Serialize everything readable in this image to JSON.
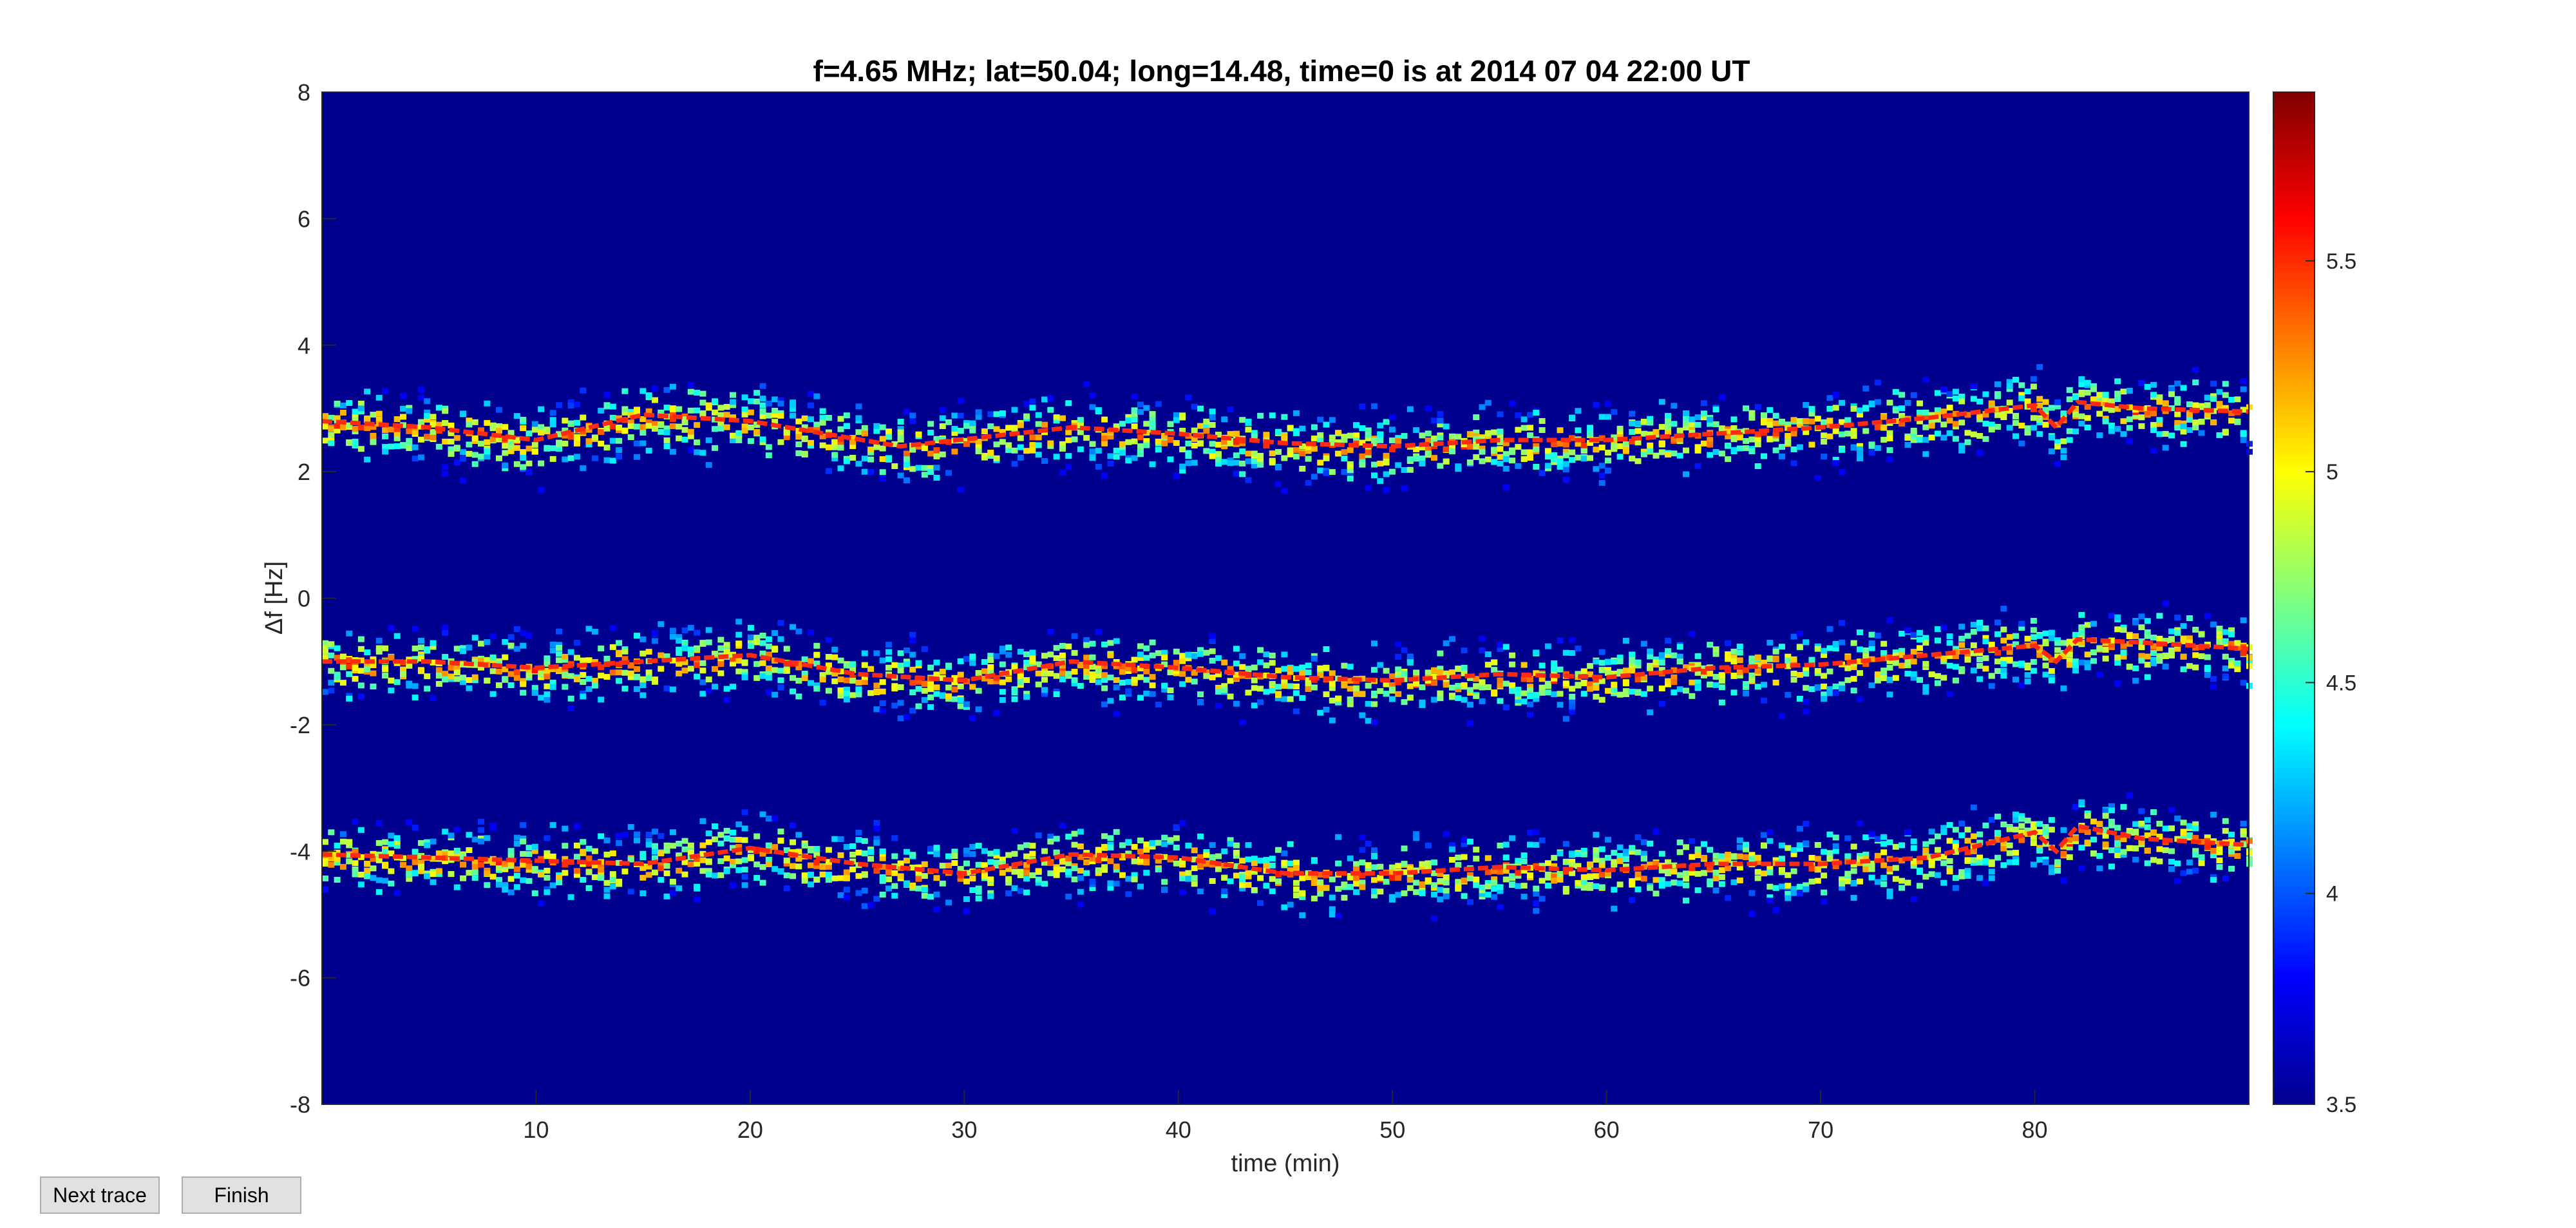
{
  "buttons": {
    "next_trace": "Next trace",
    "finish": "Finish"
  },
  "chart_data": {
    "type": "heatmap",
    "title": "f=4.65 MHz;  lat=50.04; long=14.48, time=0 is at 2014 07 04 22:00 UT",
    "xlabel": "time (min)",
    "ylabel": "Δf [Hz]",
    "xlim": [
      0,
      90
    ],
    "ylim": [
      -8,
      8
    ],
    "xticks": [
      10,
      20,
      30,
      40,
      50,
      60,
      70,
      80
    ],
    "yticks": [
      -8,
      -6,
      -4,
      -2,
      0,
      2,
      4,
      6,
      8
    ],
    "colorbar": {
      "clim": [
        3.5,
        5.9
      ],
      "ticks": [
        3.5,
        4,
        4.5,
        5,
        5.5
      ],
      "colormap": "jet"
    },
    "background_color": "#00008f",
    "grid": false,
    "legend": "none",
    "series": [
      {
        "time": [
          0,
          5,
          10,
          15,
          20,
          27,
          35,
          40,
          45,
          50,
          55,
          60,
          65,
          70,
          75,
          80,
          81,
          82,
          85,
          90
        ],
        "delta_f": [
          2.8,
          2.7,
          2.5,
          2.9,
          2.8,
          2.4,
          2.7,
          2.6,
          2.45,
          2.4,
          2.5,
          2.5,
          2.6,
          2.7,
          2.85,
          3.05,
          2.7,
          3.1,
          3.0,
          2.95
        ]
      },
      {
        "time": [
          0,
          5,
          10,
          15,
          20,
          25,
          30,
          35,
          40,
          45,
          50,
          55,
          60,
          65,
          70,
          75,
          80,
          81,
          82,
          85,
          90
        ],
        "delta_f": [
          -1.0,
          -1.0,
          -1.1,
          -1.0,
          -0.9,
          -1.2,
          -1.3,
          -1.0,
          -1.1,
          -1.25,
          -1.3,
          -1.2,
          -1.25,
          -1.1,
          -1.05,
          -0.9,
          -0.75,
          -1.0,
          -0.65,
          -0.7,
          -0.8
        ]
      },
      {
        "time": [
          0,
          5,
          10,
          15,
          20,
          25,
          30,
          35,
          40,
          45,
          50,
          55,
          60,
          65,
          70,
          75,
          80,
          81,
          82,
          85,
          90
        ],
        "delta_f": [
          -4.05,
          -4.1,
          -4.15,
          -4.2,
          -3.95,
          -4.2,
          -4.35,
          -4.05,
          -4.1,
          -4.35,
          -4.35,
          -4.25,
          -4.3,
          -4.2,
          -4.2,
          -4.1,
          -3.7,
          -4.0,
          -3.6,
          -3.8,
          -3.9
        ]
      }
    ]
  }
}
